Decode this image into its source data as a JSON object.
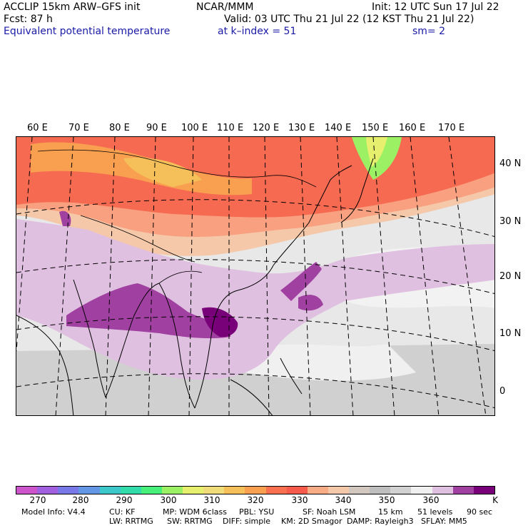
{
  "header": {
    "model": "ACCLIP 15km ARW–GFS init",
    "center": "NCAR/MMM",
    "init": "Init: 12 UTC Sun 17 Jul 22",
    "fcst": "Fcst:   87 h",
    "valid": "Valid: 03 UTC Thu 21 Jul 22 (12 KST Thu 21 Jul 22)",
    "field": "Equivalent potential temperature",
    "level": "at k–index =  51",
    "smooth": "sm= 2"
  },
  "map": {
    "lon_labels": [
      "60 E",
      "70 E",
      "80 E",
      "90 E",
      "100 E",
      "110 E",
      "120 E",
      "130 E",
      "140 E",
      "150 E",
      "160 E",
      "170 E"
    ],
    "lat_labels": [
      "40 N",
      "30 N",
      "20 N",
      "10 N",
      "0"
    ]
  },
  "colorbar": {
    "colors": [
      "#cc55cc",
      "#a060e0",
      "#7878e8",
      "#6496e6",
      "#3cc8c8",
      "#32dcaa",
      "#46f07a",
      "#9cf064",
      "#e6f06e",
      "#f0dc78",
      "#f5c05a",
      "#f8a050",
      "#f87050",
      "#f55a4a",
      "#f8ac86",
      "#f5c8aa",
      "#d2c8c0",
      "#bebebe",
      "#d2d2d2",
      "#f0f0f0",
      "#e0c0e0",
      "#a040a0",
      "#780078"
    ],
    "ticks": [
      "270",
      "280",
      "290",
      "300",
      "310",
      "320",
      "330",
      "340",
      "350",
      "360"
    ],
    "unit": "K"
  },
  "footer": {
    "line1": [
      "Model Info: V4.4",
      "CU: KF",
      "MP: WDM 6class",
      "PBL: YSU",
      "SF: Noah LSM",
      "15 km",
      "51 levels",
      "90 sec"
    ],
    "line2": [
      "LW: RRTMG",
      "SW: RRTMG",
      "DIFF: simple",
      "KM: 2D Smagor",
      "DAMP: Rayleigh3",
      "SFLAY: MM5"
    ]
  }
}
